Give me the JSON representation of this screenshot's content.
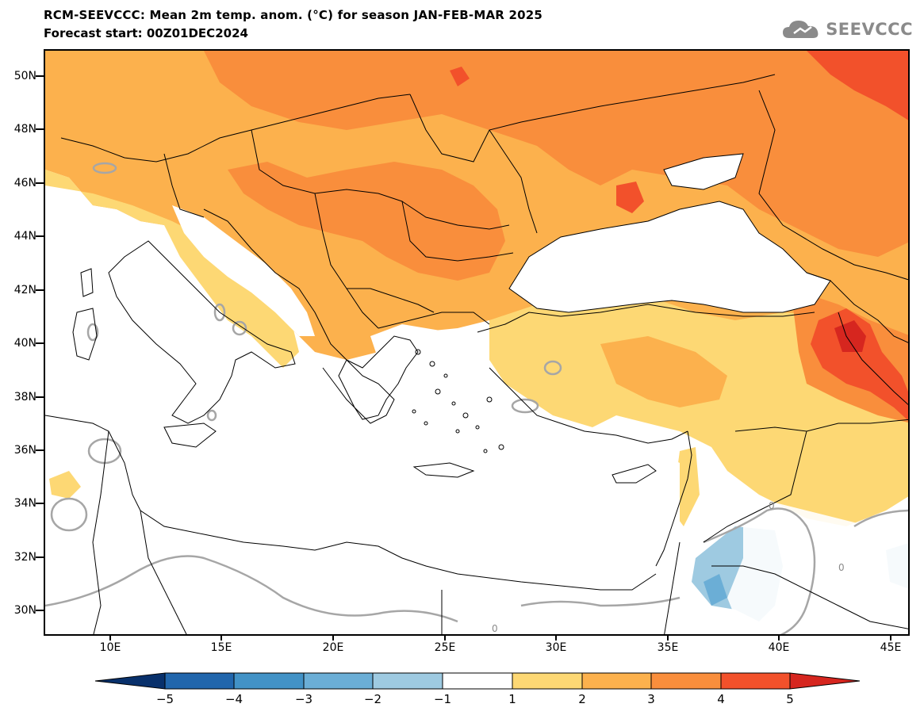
{
  "header": {
    "title": "RCM-SEEVCCC: Mean 2m temp. anom. (°C) for season JAN-FEB-MAR 2025",
    "subtitle": "Forecast start: 00Z01DEC2024",
    "logo_text": "SEEVCCC"
  },
  "map": {
    "lat_labels": [
      "50N",
      "48N",
      "46N",
      "44N",
      "42N",
      "40N",
      "38N",
      "36N",
      "34N",
      "32N",
      "30N"
    ],
    "lon_labels": [
      "10E",
      "15E",
      "20E",
      "25E",
      "30E",
      "35E",
      "40E",
      "45E"
    ],
    "contour_labels": [
      "0",
      "0",
      "0"
    ],
    "colors": {
      "land_boundary": "#000000",
      "zero_contour": "#a6a6a6",
      "anom_1_2": "#fdd874",
      "anom_2_3": "#fcb14d",
      "anom_3_4": "#f98e3c",
      "anom_4_5": "#f2512b",
      "anom_gt5": "#d6261f",
      "anom_m2_m1": "#9ecae1",
      "anom_m3_m2": "#6baed6"
    }
  },
  "colorbar": {
    "tick_labels": [
      "−5",
      "−4",
      "−3",
      "−2",
      "−1",
      "1",
      "2",
      "3",
      "4",
      "5"
    ],
    "colors": [
      "#08306b",
      "#2166ac",
      "#4292c6",
      "#6baed6",
      "#9ecae1",
      "#ffffff",
      "#fdd874",
      "#fcb14d",
      "#f98e3c",
      "#f2512b",
      "#d6261f"
    ]
  }
}
